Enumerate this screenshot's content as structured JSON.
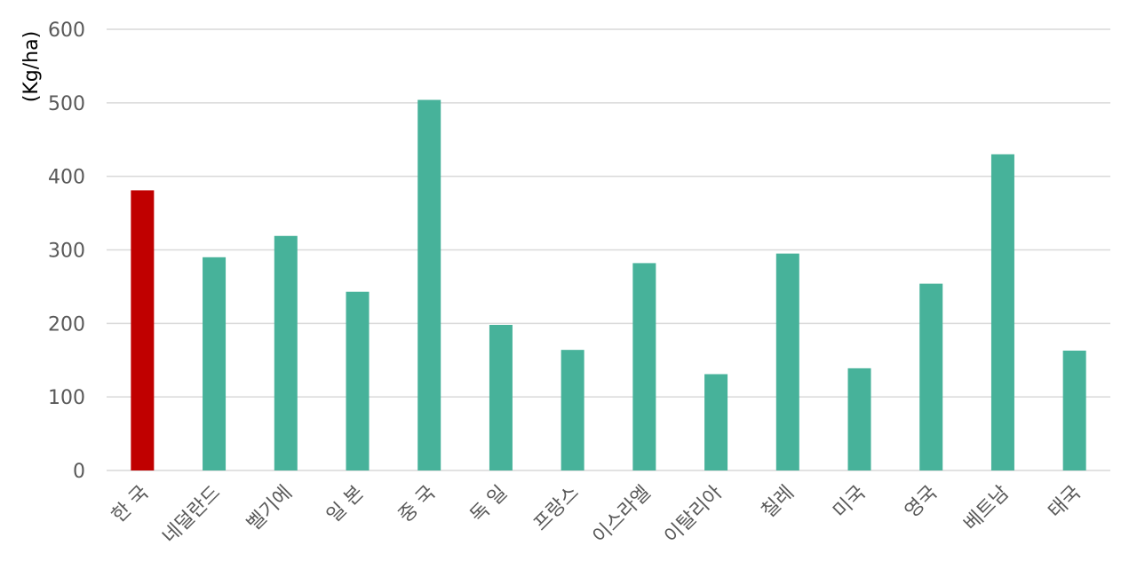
{
  "chart_data": {
    "type": "bar",
    "title": "",
    "xlabel": "",
    "ylabel": "(Kg/ha)",
    "ylim": [
      0,
      600
    ],
    "yticks": [
      0,
      100,
      200,
      300,
      400,
      500,
      600
    ],
    "grid": true,
    "legend": "none",
    "categories": [
      "한 국",
      "네덜란드",
      "벨기에",
      "일 본",
      "중 국",
      "독 일",
      "프랑스",
      "이스라엘",
      "이탈리아",
      "칠레",
      "미국",
      "영국",
      "베트남",
      "태국"
    ],
    "values": [
      381,
      290,
      319,
      243,
      504,
      198,
      164,
      282,
      131,
      295,
      139,
      254,
      430,
      163
    ],
    "highlight_index": 0,
    "colors": {
      "default_bar": "#47b29a",
      "highlight_bar": "#c00000",
      "grid": "#d9d9d9",
      "tick_text": "#595959",
      "axis_title": "#000000"
    }
  }
}
